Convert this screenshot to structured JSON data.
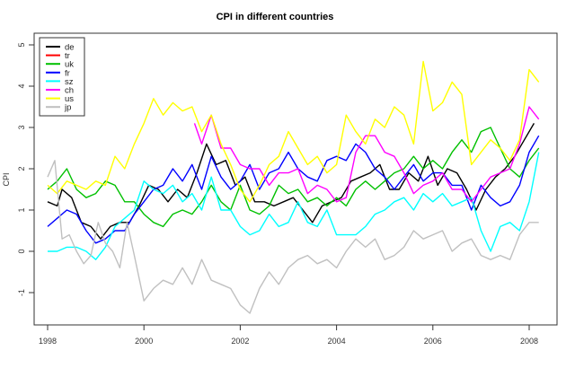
{
  "chart_data": {
    "type": "line",
    "title": "CPI in different countries",
    "xlabel": "",
    "ylabel": "CPI",
    "xlim": [
      1997.7,
      2008.5
    ],
    "ylim": [
      -1.8,
      5.3
    ],
    "x_ticks": [
      1998,
      2000,
      2002,
      2004,
      2006,
      2008
    ],
    "x_tick_labels": [
      "1998",
      "2000",
      "2002",
      "2004",
      "2006",
      "2008"
    ],
    "y_ticks": [
      -1,
      0,
      1,
      2,
      3,
      4,
      5
    ],
    "y_tick_labels": [
      "-1",
      "0",
      "1",
      "2",
      "3",
      "4",
      "5"
    ],
    "grid": false,
    "legend_position": "top-left",
    "series": [
      {
        "name": "de",
        "color": "#000000",
        "x": [
          1998.0,
          1998.2,
          1998.3,
          1998.5,
          1998.7,
          1998.9,
          1999.1,
          1999.3,
          1999.5,
          1999.7,
          1999.9,
          2000.1,
          2000.3,
          2000.5,
          2000.7,
          2000.9,
          2001.1,
          2001.3,
          2001.5,
          2001.7,
          2001.9,
          2002.1,
          2002.3,
          2002.5,
          2002.7,
          2002.9,
          2003.1,
          2003.3,
          2003.5,
          2003.7,
          2003.9,
          2004.1,
          2004.3,
          2004.5,
          2004.7,
          2004.9,
          2005.1,
          2005.3,
          2005.5,
          2005.7,
          2005.9,
          2006.1,
          2006.3,
          2006.5,
          2006.7,
          2006.9,
          2007.1,
          2007.3,
          2007.5,
          2007.7,
          2007.9,
          2008.1
        ],
        "y": [
          1.2,
          1.1,
          1.5,
          1.3,
          0.7,
          0.6,
          0.3,
          0.6,
          0.7,
          0.7,
          1.1,
          1.6,
          1.5,
          1.2,
          1.5,
          1.3,
          1.9,
          2.6,
          2.1,
          2.2,
          1.6,
          1.8,
          1.2,
          1.2,
          1.1,
          1.2,
          1.3,
          1.0,
          0.7,
          1.1,
          1.2,
          1.3,
          1.7,
          1.8,
          1.9,
          2.1,
          1.5,
          1.5,
          1.9,
          1.7,
          2.3,
          1.6,
          2.0,
          1.9,
          1.5,
          1.0,
          1.5,
          1.8,
          2.0,
          2.3,
          2.7,
          3.1
        ]
      },
      {
        "name": "tr",
        "color": "#ff0000",
        "x": [],
        "y": []
      },
      {
        "name": "uk",
        "color": "#00c000",
        "x": [
          1998.0,
          1998.2,
          1998.4,
          1998.6,
          1998.8,
          1999.0,
          1999.2,
          1999.4,
          1999.6,
          1999.8,
          2000.0,
          2000.2,
          2000.4,
          2000.6,
          2000.8,
          2001.0,
          2001.2,
          2001.4,
          2001.6,
          2001.8,
          2002.0,
          2002.2,
          2002.4,
          2002.6,
          2002.8,
          2003.0,
          2003.2,
          2003.4,
          2003.6,
          2003.8,
          2004.0,
          2004.2,
          2004.4,
          2004.6,
          2004.8,
          2005.0,
          2005.2,
          2005.4,
          2005.6,
          2005.8,
          2006.0,
          2006.2,
          2006.4,
          2006.6,
          2006.8,
          2007.0,
          2007.2,
          2007.4,
          2007.6,
          2007.8,
          2008.0,
          2008.2
        ],
        "y": [
          1.5,
          1.7,
          2.0,
          1.5,
          1.3,
          1.4,
          1.7,
          1.6,
          1.2,
          1.2,
          0.9,
          0.7,
          0.6,
          0.9,
          1.0,
          0.9,
          1.2,
          1.6,
          1.2,
          1.0,
          1.6,
          1.0,
          0.9,
          1.1,
          1.6,
          1.4,
          1.5,
          1.2,
          1.3,
          1.1,
          1.3,
          1.1,
          1.5,
          1.7,
          1.5,
          1.7,
          1.9,
          2.0,
          2.3,
          2.0,
          2.2,
          2.0,
          2.4,
          2.7,
          2.4,
          2.9,
          3.0,
          2.5,
          2.0,
          1.8,
          2.2,
          2.5
        ]
      },
      {
        "name": "fr",
        "color": "#0000ff",
        "x": [
          1998.0,
          1998.2,
          1998.4,
          1998.6,
          1998.8,
          1999.0,
          1999.2,
          1999.4,
          1999.6,
          1999.8,
          2000.0,
          2000.2,
          2000.4,
          2000.6,
          2000.8,
          2001.0,
          2001.2,
          2001.4,
          2001.6,
          2001.8,
          2002.0,
          2002.2,
          2002.4,
          2002.6,
          2002.8,
          2003.0,
          2003.2,
          2003.4,
          2003.6,
          2003.8,
          2004.0,
          2004.2,
          2004.4,
          2004.6,
          2004.8,
          2005.0,
          2005.2,
          2005.4,
          2005.6,
          2005.8,
          2006.0,
          2006.2,
          2006.4,
          2006.6,
          2006.8,
          2007.0,
          2007.2,
          2007.4,
          2007.6,
          2007.8,
          2008.0,
          2008.2
        ],
        "y": [
          0.6,
          0.8,
          1.0,
          0.9,
          0.5,
          0.2,
          0.3,
          0.5,
          0.5,
          0.9,
          1.2,
          1.5,
          1.6,
          2.0,
          1.7,
          2.1,
          1.5,
          2.3,
          1.8,
          1.5,
          1.7,
          2.1,
          1.5,
          1.9,
          2.0,
          2.4,
          2.0,
          1.8,
          1.7,
          2.2,
          2.3,
          2.2,
          2.6,
          2.4,
          2.0,
          1.8,
          1.5,
          1.8,
          2.1,
          1.7,
          1.9,
          1.9,
          1.6,
          1.6,
          1.0,
          1.6,
          1.3,
          1.1,
          1.2,
          1.6,
          2.4,
          2.8
        ]
      },
      {
        "name": "sz",
        "color": "#00ffff",
        "x": [
          1998.0,
          1998.2,
          1998.4,
          1998.6,
          1998.8,
          1999.0,
          1999.2,
          1999.4,
          1999.6,
          1999.8,
          2000.0,
          2000.2,
          2000.4,
          2000.6,
          2000.8,
          2001.0,
          2001.2,
          2001.4,
          2001.6,
          2001.8,
          2002.0,
          2002.2,
          2002.4,
          2002.6,
          2002.8,
          2003.0,
          2003.2,
          2003.4,
          2003.6,
          2003.8,
          2004.0,
          2004.2,
          2004.4,
          2004.6,
          2004.8,
          2005.0,
          2005.2,
          2005.4,
          2005.6,
          2005.8,
          2006.0,
          2006.2,
          2006.4,
          2006.6,
          2006.8,
          2007.0,
          2007.2,
          2007.4,
          2007.6,
          2007.8,
          2008.0,
          2008.2
        ],
        "y": [
          0.0,
          0.0,
          0.1,
          0.1,
          0.0,
          -0.2,
          0.1,
          0.6,
          0.8,
          1.0,
          1.7,
          1.5,
          1.4,
          1.6,
          1.2,
          1.4,
          1.0,
          1.8,
          1.0,
          1.0,
          0.6,
          0.4,
          0.5,
          0.9,
          0.6,
          0.7,
          1.2,
          0.7,
          0.6,
          1.0,
          0.4,
          0.4,
          0.4,
          0.6,
          0.9,
          1.0,
          1.2,
          1.3,
          1.0,
          1.4,
          1.2,
          1.4,
          1.1,
          1.2,
          1.3,
          0.5,
          0.0,
          0.6,
          0.7,
          0.5,
          1.2,
          2.4
        ]
      },
      {
        "name": "ch",
        "color": "#ff00ff",
        "x": [
          2001.05,
          2001.2,
          2001.4,
          2001.6,
          2001.8,
          2002.0,
          2002.2,
          2002.4,
          2002.6,
          2002.8,
          2003.0,
          2003.2,
          2003.4,
          2003.6,
          2003.8,
          2004.0,
          2004.2,
          2004.4,
          2004.6,
          2004.8,
          2005.0,
          2005.2,
          2005.4,
          2005.6,
          2005.8,
          2006.0,
          2006.2,
          2006.4,
          2006.6,
          2006.8,
          2007.0,
          2007.2,
          2007.4,
          2007.6,
          2007.8,
          2008.0,
          2008.2
        ],
        "y": [
          3.1,
          2.6,
          3.3,
          2.5,
          2.5,
          2.1,
          2.0,
          2.0,
          1.6,
          1.9,
          1.9,
          2.0,
          1.4,
          1.6,
          1.5,
          1.2,
          1.3,
          2.4,
          2.8,
          2.8,
          2.4,
          2.3,
          1.9,
          1.4,
          1.6,
          1.7,
          1.9,
          1.5,
          1.5,
          1.2,
          1.5,
          1.8,
          1.9,
          2.0,
          2.6,
          3.5,
          3.2
        ]
      },
      {
        "name": "us",
        "color": "#ffff00",
        "x": [
          1998.0,
          1998.2,
          1998.4,
          1998.6,
          1998.8,
          1999.0,
          1999.2,
          1999.4,
          1999.6,
          1999.8,
          2000.0,
          2000.2,
          2000.4,
          2000.6,
          2000.8,
          2001.0,
          2001.2,
          2001.4,
          2001.6,
          2001.8,
          2002.0,
          2002.2,
          2002.4,
          2002.6,
          2002.8,
          2003.0,
          2003.2,
          2003.4,
          2003.6,
          2003.8,
          2004.0,
          2004.2,
          2004.4,
          2004.6,
          2004.8,
          2005.0,
          2005.2,
          2005.4,
          2005.6,
          2005.8,
          2006.0,
          2006.2,
          2006.4,
          2006.6,
          2006.8,
          2007.0,
          2007.2,
          2007.4,
          2007.6,
          2007.8,
          2008.0,
          2008.2
        ],
        "y": [
          1.6,
          1.4,
          1.7,
          1.6,
          1.5,
          1.7,
          1.6,
          2.3,
          2.0,
          2.6,
          3.1,
          3.7,
          3.3,
          3.6,
          3.4,
          3.5,
          2.9,
          3.3,
          2.6,
          2.1,
          1.5,
          1.2,
          1.6,
          2.1,
          2.3,
          2.9,
          2.5,
          2.1,
          2.3,
          1.9,
          2.1,
          3.3,
          2.9,
          2.6,
          3.2,
          3.0,
          3.5,
          3.3,
          2.6,
          4.6,
          3.4,
          3.6,
          4.1,
          3.8,
          2.1,
          2.4,
          2.7,
          2.5,
          2.2,
          2.7,
          4.4,
          4.1
        ]
      },
      {
        "name": "jp",
        "color": "#c0c0c0",
        "x": [
          1998.0,
          1998.15,
          1998.3,
          1998.45,
          1998.6,
          1998.75,
          1998.9,
          1999.05,
          1999.2,
          1999.35,
          1999.5,
          1999.65,
          1999.8,
          2000.0,
          2000.2,
          2000.4,
          2000.6,
          2000.8,
          2001.0,
          2001.2,
          2001.4,
          2001.6,
          2001.8,
          2002.0,
          2002.2,
          2002.4,
          2002.6,
          2002.8,
          2003.0,
          2003.2,
          2003.4,
          2003.6,
          2003.8,
          2004.0,
          2004.2,
          2004.4,
          2004.6,
          2004.8,
          2005.0,
          2005.2,
          2005.4,
          2005.6,
          2005.8,
          2006.0,
          2006.2,
          2006.4,
          2006.6,
          2006.8,
          2007.0,
          2007.2,
          2007.4,
          2007.6,
          2007.8,
          2008.0,
          2008.2
        ],
        "y": [
          1.8,
          2.2,
          0.3,
          0.4,
          0.0,
          -0.3,
          -0.1,
          0.7,
          0.2,
          0.0,
          -0.4,
          0.7,
          -0.1,
          -1.2,
          -0.9,
          -0.7,
          -0.8,
          -0.4,
          -0.8,
          -0.2,
          -0.7,
          -0.8,
          -0.9,
          -1.3,
          -1.5,
          -0.9,
          -0.5,
          -0.8,
          -0.4,
          -0.2,
          -0.1,
          -0.3,
          -0.2,
          -0.4,
          0.0,
          0.3,
          0.1,
          0.3,
          -0.2,
          -0.1,
          0.1,
          0.5,
          0.3,
          0.4,
          0.5,
          0.0,
          0.2,
          0.3,
          -0.1,
          -0.2,
          -0.1,
          -0.2,
          0.4,
          0.7,
          0.7
        ]
      }
    ]
  }
}
